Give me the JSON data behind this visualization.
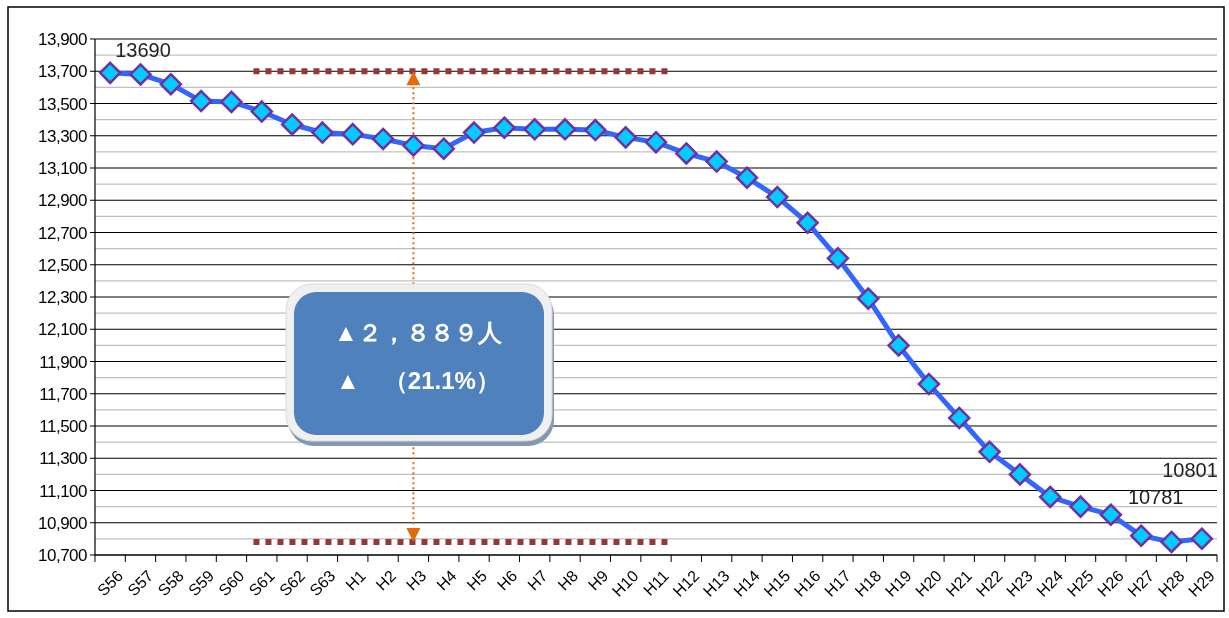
{
  "chart_data": {
    "type": "line",
    "categories": [
      "S56",
      "S57",
      "S58",
      "S59",
      "S60",
      "S61",
      "S62",
      "S63",
      "H1",
      "H2",
      "H3",
      "H4",
      "H5",
      "H6",
      "H7",
      "H8",
      "H9",
      "H10",
      "H11",
      "H12",
      "H13",
      "H14",
      "H15",
      "H16",
      "H17",
      "H18",
      "H19",
      "H20",
      "H21",
      "H22",
      "H23",
      "H24",
      "H25",
      "H26",
      "H27",
      "H28",
      "H29"
    ],
    "series": [
      {
        "color": "#3366ff",
        "values": [
          13690,
          13680,
          13620,
          13515,
          13510,
          13450,
          13370,
          13320,
          13310,
          13280,
          13240,
          13220,
          13320,
          13350,
          13340,
          13340,
          13335,
          13290,
          13260,
          13190,
          13140,
          13040,
          12920,
          12760,
          12540,
          12290,
          12000,
          11760,
          11550,
          11340,
          11200,
          11060,
          11000,
          10950,
          10820,
          10781,
          10801
        ],
        "value_labels": [
          "13690",
          null,
          null,
          null,
          null,
          null,
          null,
          null,
          null,
          null,
          null,
          null,
          null,
          null,
          null,
          null,
          null,
          null,
          null,
          null,
          null,
          null,
          null,
          null,
          null,
          null,
          null,
          null,
          null,
          null,
          null,
          null,
          null,
          null,
          null,
          "10781",
          "10801"
        ]
      }
    ],
    "ylim": [
      10700,
      13900
    ],
    "yticks": [
      {
        "value": 10700,
        "label": "10,700"
      },
      {
        "value": 10900,
        "label": "10,900"
      },
      {
        "value": 11100,
        "label": "11,100"
      },
      {
        "value": 11300,
        "label": "11,300"
      },
      {
        "value": 11500,
        "label": "11,500"
      },
      {
        "value": 11700,
        "label": "11,700"
      },
      {
        "value": 11900,
        "label": "11,900"
      },
      {
        "value": 12100,
        "label": "12,100"
      },
      {
        "value": 12300,
        "label": "12,300"
      },
      {
        "value": 12500,
        "label": "12,500"
      },
      {
        "value": 12700,
        "label": "12,700"
      },
      {
        "value": 12900,
        "label": "12,900"
      },
      {
        "value": 13100,
        "label": "13,100"
      },
      {
        "value": 13300,
        "label": "13,300"
      },
      {
        "value": 13500,
        "label": "13,500"
      },
      {
        "value": 13700,
        "label": "13,700"
      },
      {
        "value": 13900,
        "label": "13,900"
      }
    ],
    "grid": "y",
    "marker": "diamond",
    "line_style": "solid",
    "ref_lines": [
      {
        "axis": "y",
        "value": 13700,
        "color": "#953735",
        "line_style": "dotted"
      },
      {
        "axis": "y",
        "value": 10780,
        "color": "#953735",
        "line_style": "dotted"
      }
    ],
    "annotations": [
      "▲２，８８９人",
      "▲　（21.1%）"
    ]
  }
}
